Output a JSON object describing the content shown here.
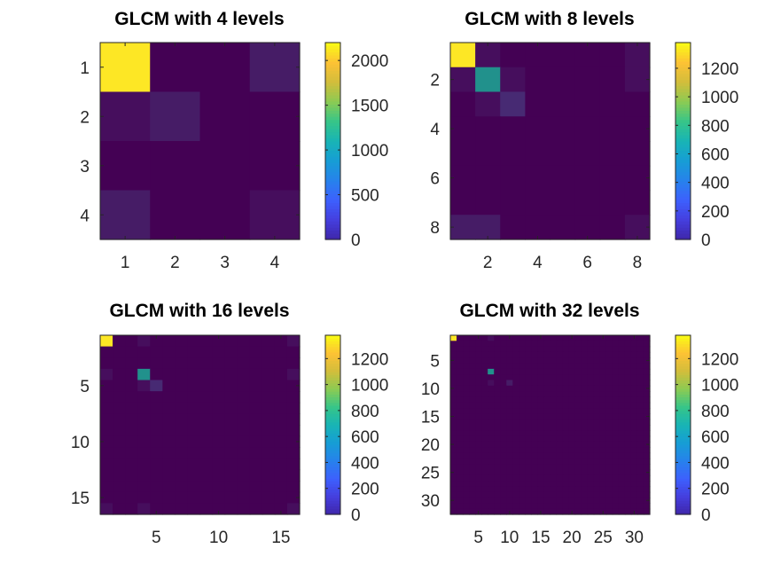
{
  "chart_data": [
    {
      "type": "heatmap",
      "title": "GLCM with 4 levels",
      "levels": 4,
      "colormap": "parula",
      "color_limits": [
        0,
        2200
      ],
      "colorbar_ticks": [
        "0",
        "500",
        "1000",
        "1500",
        "2000"
      ],
      "x_ticks": [
        "1",
        "2",
        "3",
        "4"
      ],
      "y_ticks": [
        "1",
        "2",
        "3",
        "4"
      ],
      "matrix": [
        [
          2150,
          40,
          15,
          140
        ],
        [
          45,
          140,
          10,
          10
        ],
        [
          10,
          10,
          10,
          10
        ],
        [
          140,
          10,
          10,
          70
        ]
      ]
    },
    {
      "type": "heatmap",
      "title": "GLCM with 8 levels",
      "levels": 8,
      "colormap": "parula",
      "color_limits": [
        0,
        1380
      ],
      "colorbar_ticks": [
        "0",
        "200",
        "400",
        "600",
        "800",
        "1000",
        "1200"
      ],
      "x_ticks": [
        "2",
        "4",
        "6",
        "8"
      ],
      "y_ticks": [
        "2",
        "4",
        "6",
        "8"
      ],
      "matrix": [
        [
          1350,
          40,
          10,
          5,
          5,
          5,
          5,
          60
        ],
        [
          50,
          700,
          30,
          5,
          5,
          5,
          5,
          50
        ],
        [
          10,
          40,
          150,
          5,
          5,
          5,
          5,
          10
        ],
        [
          5,
          5,
          5,
          5,
          5,
          5,
          5,
          5
        ],
        [
          5,
          5,
          5,
          5,
          5,
          5,
          5,
          5
        ],
        [
          5,
          5,
          5,
          5,
          5,
          5,
          5,
          5
        ],
        [
          5,
          5,
          5,
          5,
          5,
          5,
          5,
          5
        ],
        [
          70,
          70,
          10,
          5,
          5,
          5,
          5,
          40
        ]
      ]
    },
    {
      "type": "heatmap",
      "title": "GLCM with 16 levels",
      "levels": 16,
      "colormap": "parula",
      "color_limits": [
        0,
        1380
      ],
      "colorbar_ticks": [
        "0",
        "200",
        "400",
        "600",
        "800",
        "1000",
        "1200"
      ],
      "x_ticks": [
        "5",
        "10",
        "15"
      ],
      "y_ticks": [
        "5",
        "10",
        "15"
      ],
      "cells": [
        {
          "r": 1,
          "c": 1,
          "v": 1350
        },
        {
          "r": 1,
          "c": 4,
          "v": 50
        },
        {
          "r": 1,
          "c": 16,
          "v": 40
        },
        {
          "r": 4,
          "c": 1,
          "v": 60
        },
        {
          "r": 4,
          "c": 4,
          "v": 650
        },
        {
          "r": 4,
          "c": 16,
          "v": 50
        },
        {
          "r": 5,
          "c": 4,
          "v": 40
        },
        {
          "r": 5,
          "c": 5,
          "v": 120
        },
        {
          "r": 16,
          "c": 1,
          "v": 40
        },
        {
          "r": 16,
          "c": 4,
          "v": 50
        },
        {
          "r": 16,
          "c": 16,
          "v": 30
        }
      ]
    },
    {
      "type": "heatmap",
      "title": "GLCM with 32 levels",
      "levels": 32,
      "colormap": "parula",
      "color_limits": [
        0,
        1380
      ],
      "colorbar_ticks": [
        "0",
        "200",
        "400",
        "600",
        "800",
        "1000",
        "1200"
      ],
      "x_ticks": [
        "5",
        "10",
        "15",
        "20",
        "25",
        "30"
      ],
      "y_ticks": [
        "5",
        "10",
        "15",
        "20",
        "25",
        "30"
      ],
      "cells": [
        {
          "r": 1,
          "c": 1,
          "v": 1350
        },
        {
          "r": 1,
          "c": 7,
          "v": 30
        },
        {
          "r": 1,
          "c": 32,
          "v": 20
        },
        {
          "r": 7,
          "c": 7,
          "v": 650
        },
        {
          "r": 7,
          "c": 1,
          "v": 25
        },
        {
          "r": 9,
          "c": 7,
          "v": 40
        },
        {
          "r": 9,
          "c": 10,
          "v": 100
        },
        {
          "r": 32,
          "c": 7,
          "v": 20
        }
      ]
    }
  ]
}
